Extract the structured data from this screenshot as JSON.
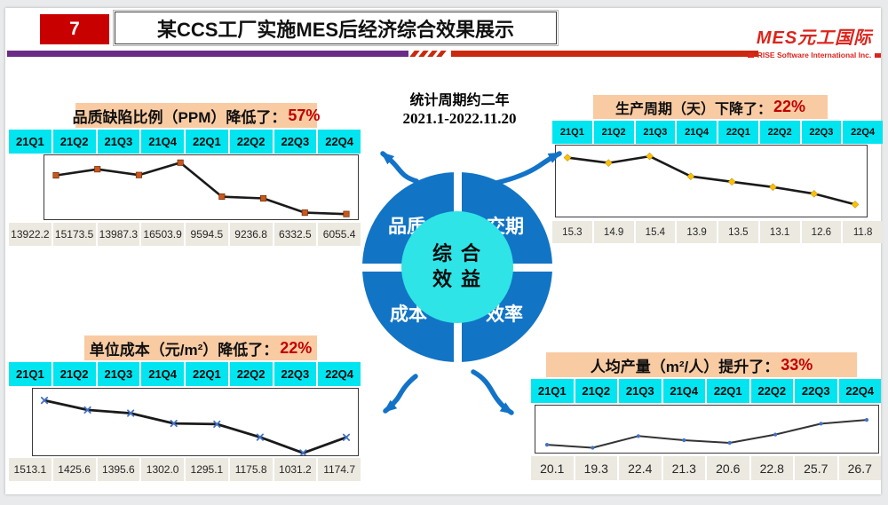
{
  "header": {
    "page_number": "7",
    "title": "某CCS工厂实施MES后经济综合效果展示",
    "logo": {
      "brand": "MES元工国际",
      "subtitle": "RISE Software International Inc."
    }
  },
  "stat_period": {
    "line1": "统计周期约二年",
    "line2": "2021.1-2022.11.20"
  },
  "hub": {
    "center_line1": "综 合",
    "center_line2": "效 益",
    "quadrants": [
      "品质",
      "交期",
      "成本",
      "效率"
    ]
  },
  "colors": {
    "page_red": "#C80000",
    "accent_red": "#C00000",
    "logo_red": "#DC241C",
    "title_bg": "#F9CBA3",
    "quarter_bg": "#00E5F0",
    "value_bg": "#ECE9E0",
    "divider_purple": "#6B2C87",
    "divider_red": "#C9290F",
    "arrow_blue": "#1273C8",
    "ring_blue": "#1274C5",
    "core_cyan": "#2EE4E6"
  },
  "chart_data": [
    {
      "type": "line",
      "position": "top-left",
      "title_prefix": "品质缺陷比例（PPM）降低了：",
      "percent": "57%",
      "categories": [
        "21Q1",
        "21Q2",
        "21Q3",
        "21Q4",
        "22Q1",
        "22Q2",
        "22Q3",
        "22Q4"
      ],
      "values": [
        13922.2,
        15173.5,
        13987.3,
        16503.9,
        9594.5,
        9236.8,
        6332.5,
        6055.4
      ],
      "ylim": [
        5000,
        18000
      ],
      "grid": false,
      "marker": "square",
      "marker_color": "#C9571E",
      "line_color": "#1a1a1a",
      "line_width": 2.6
    },
    {
      "type": "line",
      "position": "top-right",
      "title_prefix": "生产周期（天）下降了：",
      "percent": "22%",
      "categories": [
        "21Q1",
        "21Q2",
        "21Q3",
        "21Q4",
        "22Q1",
        "22Q2",
        "22Q3",
        "22Q4"
      ],
      "values": [
        15.3,
        14.9,
        15.4,
        13.9,
        13.5,
        13.1,
        12.6,
        11.8
      ],
      "ylim": [
        10.9,
        16.2
      ],
      "grid": false,
      "marker": "diamond",
      "marker_color": "#FFC000",
      "line_color": "#1a1a1a",
      "line_width": 2.6
    },
    {
      "type": "line",
      "position": "bottom-left",
      "title_prefix": "单位成本（元/m²）降低了：",
      "percent": "22%",
      "categories": [
        "21Q1",
        "21Q2",
        "21Q3",
        "21Q4",
        "22Q1",
        "22Q2",
        "22Q3",
        "22Q4"
      ],
      "values": [
        1513.1,
        1425.6,
        1395.6,
        1302.0,
        1295.1,
        1175.8,
        1031.2,
        1174.7
      ],
      "ylim": [
        1010,
        1620
      ],
      "grid": false,
      "marker": "x",
      "marker_color": "#4472C4",
      "line_color": "#1a1a1a",
      "line_width": 2.8
    },
    {
      "type": "line",
      "position": "bottom-right",
      "title_prefix": "人均产量（m²/人）提升了：",
      "percent": "33%",
      "categories": [
        "21Q1",
        "21Q2",
        "21Q3",
        "21Q4",
        "22Q1",
        "22Q2",
        "22Q3",
        "22Q4"
      ],
      "values": [
        20.1,
        19.3,
        22.4,
        21.3,
        20.6,
        22.8,
        25.7,
        26.7
      ],
      "ylim": [
        18,
        30.5
      ],
      "grid": false,
      "marker": "dot",
      "marker_color": "#4472C4",
      "line_color": "#333333",
      "line_width": 2
    }
  ]
}
